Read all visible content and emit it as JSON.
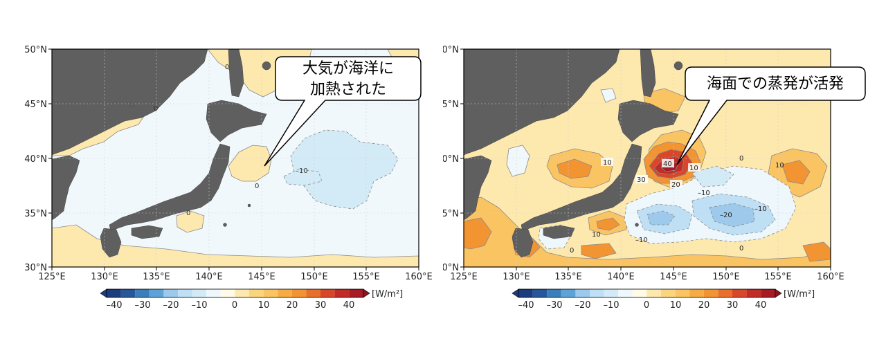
{
  "panels": [
    {
      "callout": [
        "大気が海洋に",
        "加熱された"
      ],
      "contour_labels": [
        "0",
        "0",
        "0",
        "0",
        "–10"
      ],
      "colorbar_ticks": [
        "–40",
        "–30",
        "–20",
        "–10",
        "0",
        "10",
        "20",
        "30",
        "40"
      ],
      "colorbar_unit": "[W/m²]"
    },
    {
      "callout": [
        "海面での蒸発が活発"
      ],
      "contour_labels": [
        "10",
        "40",
        "30",
        "20",
        "10",
        "–10",
        "–20",
        "–10",
        "0",
        "10",
        "–10",
        "0",
        "10",
        "0"
      ],
      "colorbar_ticks": [
        "–40",
        "–30",
        "–20",
        "–10",
        "0",
        "10",
        "20",
        "30",
        "40"
      ],
      "colorbar_unit": "[W/m²]"
    }
  ],
  "axes": {
    "lat_labels": [
      "50°N",
      "45°N",
      "40°N",
      "35°N",
      "30°N"
    ],
    "lon_labels": [
      "125°E",
      "130°E",
      "135°E",
      "140°E",
      "145°E",
      "150°E",
      "155°E",
      "160°E"
    ]
  },
  "colors": {
    "land": "#5f5f5f",
    "ocean_neutral": "#f1f8fc",
    "pos_10": "#fde8ae",
    "pos_20": "#fbc462",
    "pos_30": "#f39433",
    "pos_40": "#d9472a",
    "pos_50": "#a51c24",
    "neg_10": "#d3ebf7",
    "neg_20": "#9cc9ec",
    "neg_30": "#3a7fbc",
    "neg_40": "#1c3d7d"
  }
}
